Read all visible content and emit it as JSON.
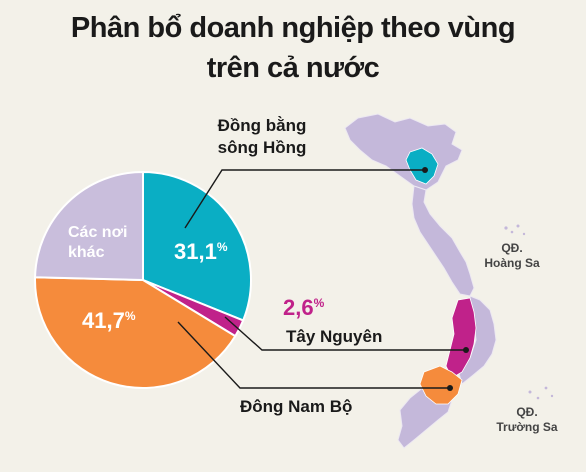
{
  "title_line1": "Phân bổ doanh nghiệp theo vùng",
  "title_line2": "trên cả nước",
  "colors": {
    "background": "#f3f1e9",
    "dong_bang_song_hong": "#0aaec4",
    "tay_nguyen": "#c0228a",
    "dong_nam_bo": "#f58b3c",
    "cac_noi_khac": "#c9bedc",
    "map_base": "#c4b8da",
    "text_dark": "#1a1a1a",
    "text_light": "#ffffff"
  },
  "chart_data": {
    "type": "pie",
    "title": "Phân bổ doanh nghiệp theo vùng trên cả nước",
    "unit": "%",
    "slices": [
      {
        "name": "Đồng bằng sông Hồng",
        "label_line1": "Đồng bằng",
        "label_line2": "sông Hồng",
        "value": 31.1,
        "value_label": "31,1",
        "color": "#0aaec4"
      },
      {
        "name": "Tây Nguyên",
        "label_line1": "Tây Nguyên",
        "value": 2.6,
        "value_label": "2,6",
        "color": "#c0228a"
      },
      {
        "name": "Đông Nam Bộ",
        "label_line1": "Đông Nam Bộ",
        "value": 41.7,
        "value_label": "41,7",
        "color": "#f58b3c"
      },
      {
        "name": "Các nơi khác",
        "label_line1": "Các nơi",
        "label_line2": "khác",
        "value": 24.6,
        "color": "#c9bedc"
      }
    ]
  },
  "map": {
    "label_hoang_sa_1": "QĐ.",
    "label_hoang_sa_2": "Hoàng Sa",
    "label_truong_sa_1": "QĐ.",
    "label_truong_sa_2": "Trường Sa"
  },
  "percent_sign": "%"
}
